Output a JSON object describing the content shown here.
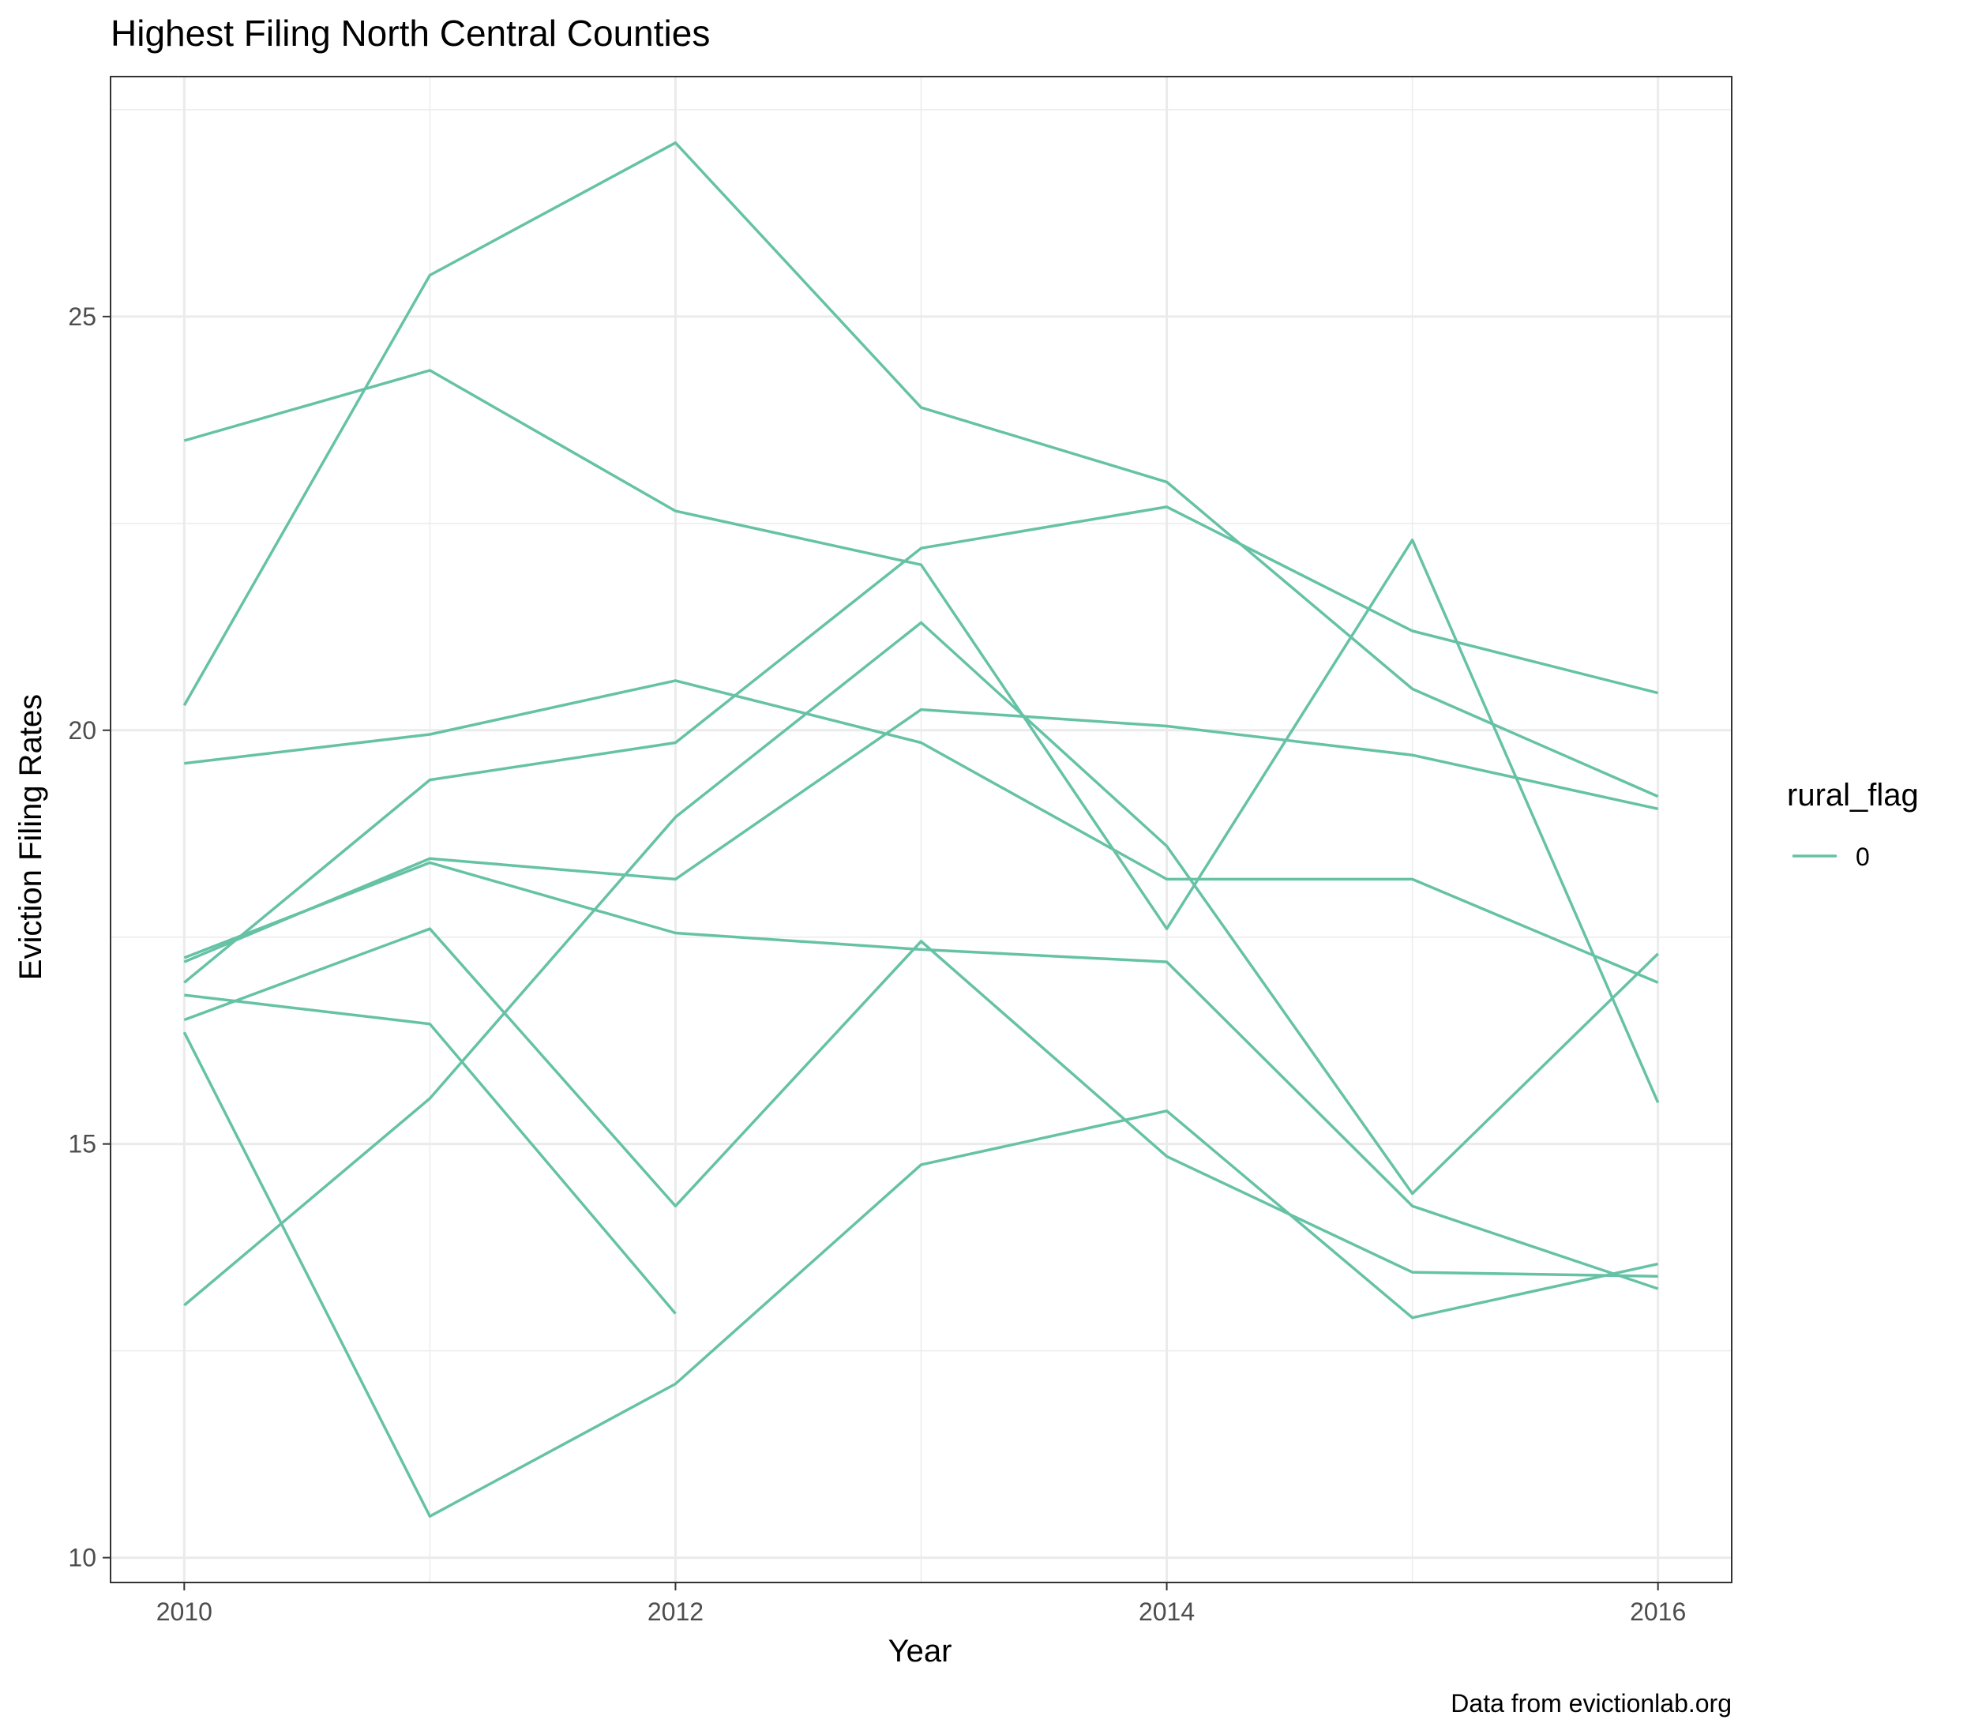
{
  "chart_data": {
    "type": "line",
    "title": "Highest Filing North Central Counties",
    "xlabel": "Year",
    "ylabel": "Eviction Filing Rates",
    "caption": "Data from evictionlab.org",
    "xlim": [
      2009.7,
      2016.3
    ],
    "ylim": [
      9.7,
      27.9
    ],
    "xticks": [
      2010,
      2012,
      2014,
      2016
    ],
    "yticks": [
      10,
      15,
      20,
      25
    ],
    "grid": true,
    "line_color": "#66c2a5",
    "legend": {
      "title": "rural_flag",
      "entries": [
        "0"
      ],
      "placement": "right"
    },
    "x": [
      2010,
      2011,
      2012,
      2013,
      2014,
      2015,
      2016
    ],
    "series": [
      {
        "values": [
          20.3,
          25.5,
          27.1,
          23.9,
          23.0,
          20.5,
          19.2
        ]
      },
      {
        "values": [
          23.5,
          24.35,
          22.65,
          22.0,
          17.6,
          22.3,
          15.5
        ]
      },
      {
        "values": [
          19.6,
          19.95,
          20.6,
          19.85,
          18.2,
          18.2,
          16.95
        ]
      },
      {
        "values": [
          16.95,
          19.4,
          19.85,
          22.2,
          22.7,
          21.2,
          20.45
        ]
      },
      {
        "values": [
          17.2,
          18.45,
          18.2,
          20.25,
          20.05,
          19.7,
          19.05
        ]
      },
      {
        "values": [
          17.25,
          18.4,
          17.55,
          17.35,
          17.2,
          14.25,
          13.25
        ]
      },
      {
        "values": [
          16.5,
          17.6,
          14.25,
          17.45,
          14.85,
          13.45,
          13.4
        ]
      },
      {
        "values": [
          13.05,
          15.55,
          18.95,
          21.3,
          18.6,
          14.4,
          17.3
        ]
      },
      {
        "values": [
          16.8,
          16.45,
          12.95,
          null,
          null,
          null,
          null
        ]
      },
      {
        "values": [
          16.35,
          10.5,
          12.1,
          14.75,
          15.4,
          12.9,
          13.55
        ]
      }
    ]
  }
}
